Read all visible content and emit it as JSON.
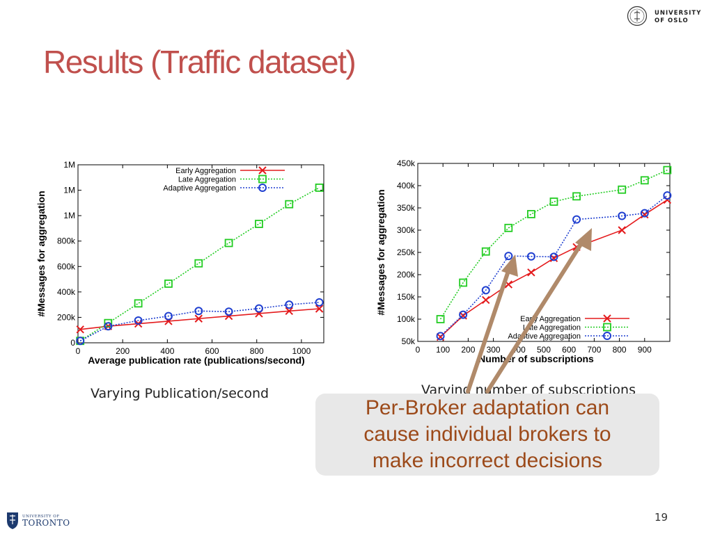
{
  "slide": {
    "title": "Results (Traffic dataset)",
    "page_number": "19",
    "logo_top_right": "UNIVERSITY OF OSLO",
    "logo_bottom_left_small": "UNIVERSITY OF",
    "logo_bottom_left_big": "TORONTO",
    "caption_left": "Varying Publication/second",
    "caption_right": "Varying number of subscriptions",
    "callout_lines": [
      "Per-Broker adaptation can",
      "cause individual brokers to",
      "make incorrect decisions"
    ],
    "colors": {
      "title": "#c0504d",
      "callout_text": "#9c4a1a",
      "arrow": "#b08a6a"
    }
  },
  "chart_data": [
    {
      "type": "line",
      "xlabel": "Average publication rate (publications/second)",
      "ylabel": "#Messages for aggregation",
      "xlim": [
        0,
        1100
      ],
      "ylim": [
        0,
        1400000
      ],
      "xticks": [
        "0",
        "200",
        "400",
        "600",
        "800",
        "1000"
      ],
      "yticks": [
        "0",
        "200k",
        "400k",
        "600k",
        "800k",
        "1M",
        "1M",
        "1M"
      ],
      "legend_position": "top-right",
      "x": [
        10,
        135,
        270,
        405,
        540,
        675,
        810,
        945,
        1080
      ],
      "series": [
        {
          "name": "Early Aggregation",
          "color": "#e41a1c",
          "marker": "x",
          "dash": "solid",
          "values": [
            105000,
            130000,
            150000,
            170000,
            190000,
            210000,
            230000,
            250000,
            268000
          ]
        },
        {
          "name": "Late Aggregation",
          "color": "#22cc22",
          "marker": "square",
          "dash": "dotted",
          "values": [
            15000,
            155000,
            310000,
            465000,
            625000,
            785000,
            935000,
            1090000,
            1220000
          ]
        },
        {
          "name": "Adaptive Aggregation",
          "color": "#1f3fd0",
          "marker": "circle",
          "dash": "dotted",
          "values": [
            15000,
            130000,
            175000,
            210000,
            250000,
            245000,
            270000,
            300000,
            318000
          ]
        }
      ]
    },
    {
      "type": "line",
      "xlabel": "Number of subscriptions",
      "ylabel": "#Messages for aggregation",
      "xlim": [
        0,
        1000
      ],
      "ylim": [
        50000,
        450000
      ],
      "xticks": [
        "0",
        "100",
        "200",
        "300",
        "400",
        "500",
        "600",
        "700",
        "800",
        "900"
      ],
      "yticks": [
        "50k",
        "100k",
        "150k",
        "200k",
        "250k",
        "300k",
        "350k",
        "400k",
        "450k"
      ],
      "legend_position": "bottom-right",
      "x": [
        90,
        180,
        270,
        360,
        450,
        540,
        630,
        720,
        810,
        900,
        990
      ],
      "series": [
        {
          "name": "Early Aggregation",
          "color": "#e41a1c",
          "marker": "x",
          "dash": "solid",
          "values": [
            60000,
            108000,
            143000,
            178000,
            205000,
            237000,
            262000,
            null,
            300000,
            335000,
            368000
          ]
        },
        {
          "name": "Late Aggregation",
          "color": "#22cc22",
          "marker": "square",
          "dash": "dotted",
          "values": [
            100000,
            182000,
            252000,
            305000,
            336000,
            364000,
            376000,
            null,
            391000,
            412000,
            435000
          ]
        },
        {
          "name": "Adaptive Aggregation",
          "color": "#1f3fd0",
          "marker": "circle",
          "dash": "dotted",
          "values": [
            62000,
            110000,
            165000,
            242000,
            241000,
            240000,
            324000,
            null,
            332000,
            338000,
            378000
          ]
        }
      ]
    }
  ]
}
